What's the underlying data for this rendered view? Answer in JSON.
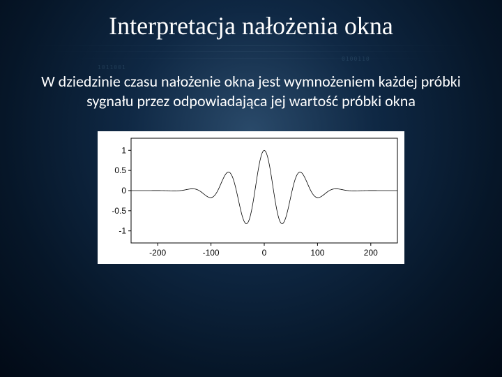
{
  "title": "Interpretacja nałożenia okna",
  "body_text": "W dziedzinie czasu nałożenie okna jest wymnożeniem każdej próbki sygnału przez odpowiadająca jej wartość próbki okna",
  "chart": {
    "type": "line",
    "background_color": "#ffffff",
    "axis_color": "#000000",
    "signal_color": "#000000",
    "xlim": [
      -250,
      250
    ],
    "ylim": [
      -1.3,
      1.3
    ],
    "xticks": [
      -200,
      -100,
      0,
      100,
      200
    ],
    "yticks": [
      -1,
      -0.5,
      0,
      0.5,
      1
    ],
    "ytick_labels": [
      "-1",
      "-0.5",
      "0",
      "0.5",
      "1"
    ],
    "xtick_labels": [
      "-200",
      "-100",
      "0",
      "100",
      "200"
    ],
    "label_fontsize": 12,
    "envelope_sigma": 55,
    "carrier_freq": 0.09,
    "x_step": 2
  },
  "colors": {
    "title_color": "#ffffff",
    "body_color": "#ffffff",
    "bg_inner": "#2a4a6a",
    "bg_outer": "#020a16"
  }
}
